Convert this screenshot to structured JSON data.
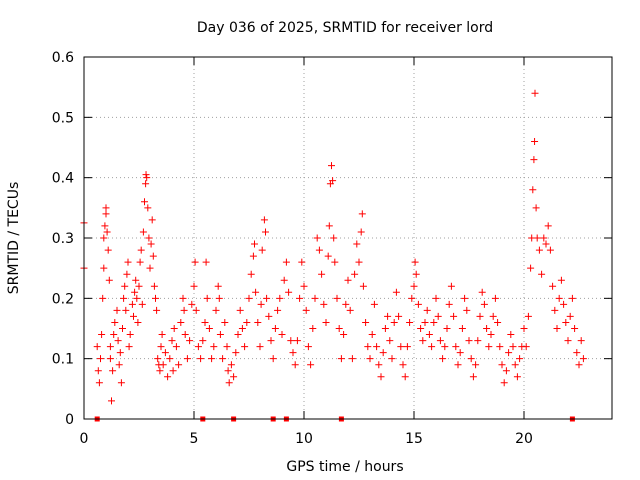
{
  "chart_data": {
    "type": "scatter",
    "title": "Day 036 of 2025, SRMTID for receiver lord",
    "xlabel": "GPS time / hours",
    "ylabel": "SRMTID / TECUs",
    "xlim": [
      0,
      24
    ],
    "ylim": [
      0,
      0.6
    ],
    "xticks": [
      0,
      5,
      10,
      15,
      20
    ],
    "yticks": [
      0,
      0.1,
      0.2,
      0.3,
      0.4,
      0.5,
      0.6
    ],
    "xtick_labels": [
      "0",
      "5",
      "10",
      "15",
      "20"
    ],
    "ytick_labels": [
      "0",
      "0.1",
      "0.2",
      "0.3",
      "0.4",
      "0.5",
      "0.6"
    ],
    "grid": true,
    "marker": "+",
    "color": "#ff0000",
    "series": [
      {
        "name": "SRMTID",
        "points": [
          [
            0.0,
            0.325
          ],
          [
            0.0,
            0.25
          ],
          [
            0.6,
            0.12
          ],
          [
            0.65,
            0.08
          ],
          [
            0.7,
            0.06
          ],
          [
            0.75,
            0.1
          ],
          [
            0.8,
            0.14
          ],
          [
            0.85,
            0.2
          ],
          [
            0.9,
            0.25
          ],
          [
            0.9,
            0.3
          ],
          [
            0.95,
            0.32
          ],
          [
            1.0,
            0.35
          ],
          [
            1.0,
            0.34
          ],
          [
            1.05,
            0.31
          ],
          [
            1.1,
            0.28
          ],
          [
            1.15,
            0.23
          ],
          [
            1.2,
            0.1
          ],
          [
            1.2,
            0.12
          ],
          [
            1.25,
            0.03
          ],
          [
            1.3,
            0.08
          ],
          [
            1.35,
            0.14
          ],
          [
            1.4,
            0.16
          ],
          [
            1.5,
            0.18
          ],
          [
            1.55,
            0.13
          ],
          [
            1.6,
            0.09
          ],
          [
            1.65,
            0.11
          ],
          [
            1.7,
            0.06
          ],
          [
            1.75,
            0.15
          ],
          [
            1.8,
            0.2
          ],
          [
            1.85,
            0.22
          ],
          [
            1.9,
            0.18
          ],
          [
            1.95,
            0.24
          ],
          [
            2.0,
            0.26
          ],
          [
            2.05,
            0.12
          ],
          [
            2.1,
            0.14
          ],
          [
            2.2,
            0.19
          ],
          [
            2.25,
            0.17
          ],
          [
            2.3,
            0.21
          ],
          [
            2.35,
            0.23
          ],
          [
            2.4,
            0.2
          ],
          [
            2.45,
            0.16
          ],
          [
            2.5,
            0.22
          ],
          [
            2.55,
            0.26
          ],
          [
            2.6,
            0.28
          ],
          [
            2.65,
            0.19
          ],
          [
            2.7,
            0.31
          ],
          [
            2.75,
            0.36
          ],
          [
            2.8,
            0.39
          ],
          [
            2.82,
            0.405
          ],
          [
            2.85,
            0.4
          ],
          [
            2.9,
            0.35
          ],
          [
            2.95,
            0.3
          ],
          [
            3.0,
            0.25
          ],
          [
            3.05,
            0.29
          ],
          [
            3.1,
            0.33
          ],
          [
            3.15,
            0.27
          ],
          [
            3.2,
            0.22
          ],
          [
            3.25,
            0.2
          ],
          [
            3.3,
            0.18
          ],
          [
            3.35,
            0.1
          ],
          [
            3.4,
            0.09
          ],
          [
            3.45,
            0.08
          ],
          [
            3.5,
            0.12
          ],
          [
            3.55,
            0.14
          ],
          [
            3.6,
            0.09
          ],
          [
            3.7,
            0.11
          ],
          [
            3.8,
            0.07
          ],
          [
            3.9,
            0.1
          ],
          [
            4.0,
            0.13
          ],
          [
            4.05,
            0.08
          ],
          [
            4.1,
            0.15
          ],
          [
            4.2,
            0.12
          ],
          [
            4.3,
            0.09
          ],
          [
            4.4,
            0.16
          ],
          [
            4.5,
            0.2
          ],
          [
            4.55,
            0.18
          ],
          [
            4.6,
            0.14
          ],
          [
            4.7,
            0.1
          ],
          [
            4.8,
            0.13
          ],
          [
            4.9,
            0.19
          ],
          [
            5.0,
            0.22
          ],
          [
            5.05,
            0.26
          ],
          [
            5.1,
            0.18
          ],
          [
            5.2,
            0.12
          ],
          [
            5.3,
            0.1
          ],
          [
            5.4,
            0.13
          ],
          [
            5.5,
            0.16
          ],
          [
            5.55,
            0.26
          ],
          [
            5.6,
            0.2
          ],
          [
            5.7,
            0.15
          ],
          [
            5.8,
            0.1
          ],
          [
            5.9,
            0.12
          ],
          [
            6.0,
            0.18
          ],
          [
            6.1,
            0.22
          ],
          [
            6.15,
            0.2
          ],
          [
            6.2,
            0.14
          ],
          [
            6.3,
            0.1
          ],
          [
            6.4,
            0.16
          ],
          [
            6.5,
            0.12
          ],
          [
            6.55,
            0.08
          ],
          [
            6.6,
            0.06
          ],
          [
            6.7,
            0.09
          ],
          [
            6.8,
            0.07
          ],
          [
            6.9,
            0.11
          ],
          [
            7.0,
            0.14
          ],
          [
            7.1,
            0.18
          ],
          [
            7.2,
            0.15
          ],
          [
            7.3,
            0.12
          ],
          [
            7.4,
            0.16
          ],
          [
            7.5,
            0.2
          ],
          [
            7.6,
            0.24
          ],
          [
            7.7,
            0.27
          ],
          [
            7.75,
            0.29
          ],
          [
            7.8,
            0.21
          ],
          [
            7.9,
            0.16
          ],
          [
            8.0,
            0.12
          ],
          [
            8.05,
            0.19
          ],
          [
            8.1,
            0.28
          ],
          [
            8.2,
            0.33
          ],
          [
            8.25,
            0.31
          ],
          [
            8.3,
            0.2
          ],
          [
            8.4,
            0.17
          ],
          [
            8.5,
            0.13
          ],
          [
            8.6,
            0.1
          ],
          [
            8.7,
            0.15
          ],
          [
            8.8,
            0.18
          ],
          [
            8.9,
            0.2
          ],
          [
            9.0,
            0.14
          ],
          [
            9.1,
            0.23
          ],
          [
            9.2,
            0.26
          ],
          [
            9.3,
            0.21
          ],
          [
            9.4,
            0.13
          ],
          [
            9.5,
            0.11
          ],
          [
            9.6,
            0.09
          ],
          [
            9.7,
            0.13
          ],
          [
            9.8,
            0.2
          ],
          [
            9.9,
            0.26
          ],
          [
            10.0,
            0.22
          ],
          [
            10.1,
            0.18
          ],
          [
            10.2,
            0.12
          ],
          [
            10.3,
            0.09
          ],
          [
            10.4,
            0.15
          ],
          [
            10.5,
            0.2
          ],
          [
            10.6,
            0.3
          ],
          [
            10.7,
            0.28
          ],
          [
            10.8,
            0.24
          ],
          [
            10.9,
            0.19
          ],
          [
            11.0,
            0.16
          ],
          [
            11.1,
            0.27
          ],
          [
            11.15,
            0.32
          ],
          [
            11.2,
            0.39
          ],
          [
            11.25,
            0.42
          ],
          [
            11.3,
            0.395
          ],
          [
            11.35,
            0.3
          ],
          [
            11.4,
            0.26
          ],
          [
            11.5,
            0.2
          ],
          [
            11.6,
            0.15
          ],
          [
            11.7,
            0.1
          ],
          [
            11.8,
            0.14
          ],
          [
            11.9,
            0.19
          ],
          [
            12.0,
            0.23
          ],
          [
            12.1,
            0.18
          ],
          [
            12.2,
            0.1
          ],
          [
            12.3,
            0.24
          ],
          [
            12.4,
            0.29
          ],
          [
            12.5,
            0.26
          ],
          [
            12.6,
            0.31
          ],
          [
            12.65,
            0.34
          ],
          [
            12.7,
            0.22
          ],
          [
            12.8,
            0.16
          ],
          [
            12.9,
            0.12
          ],
          [
            13.0,
            0.1
          ],
          [
            13.1,
            0.14
          ],
          [
            13.2,
            0.19
          ],
          [
            13.3,
            0.12
          ],
          [
            13.4,
            0.09
          ],
          [
            13.5,
            0.07
          ],
          [
            13.6,
            0.11
          ],
          [
            13.7,
            0.15
          ],
          [
            13.8,
            0.17
          ],
          [
            13.9,
            0.13
          ],
          [
            14.0,
            0.1
          ],
          [
            14.1,
            0.16
          ],
          [
            14.2,
            0.21
          ],
          [
            14.3,
            0.17
          ],
          [
            14.4,
            0.12
          ],
          [
            14.5,
            0.09
          ],
          [
            14.6,
            0.07
          ],
          [
            14.7,
            0.12
          ],
          [
            14.8,
            0.16
          ],
          [
            14.9,
            0.2
          ],
          [
            15.0,
            0.22
          ],
          [
            15.05,
            0.26
          ],
          [
            15.1,
            0.24
          ],
          [
            15.2,
            0.19
          ],
          [
            15.3,
            0.15
          ],
          [
            15.4,
            0.13
          ],
          [
            15.5,
            0.16
          ],
          [
            15.6,
            0.18
          ],
          [
            15.7,
            0.14
          ],
          [
            15.8,
            0.12
          ],
          [
            15.9,
            0.16
          ],
          [
            16.0,
            0.2
          ],
          [
            16.1,
            0.17
          ],
          [
            16.2,
            0.13
          ],
          [
            16.3,
            0.1
          ],
          [
            16.4,
            0.12
          ],
          [
            16.5,
            0.15
          ],
          [
            16.6,
            0.19
          ],
          [
            16.7,
            0.22
          ],
          [
            16.8,
            0.17
          ],
          [
            16.9,
            0.12
          ],
          [
            17.0,
            0.09
          ],
          [
            17.1,
            0.11
          ],
          [
            17.2,
            0.15
          ],
          [
            17.3,
            0.2
          ],
          [
            17.4,
            0.18
          ],
          [
            17.5,
            0.13
          ],
          [
            17.6,
            0.1
          ],
          [
            17.7,
            0.07
          ],
          [
            17.8,
            0.09
          ],
          [
            17.9,
            0.13
          ],
          [
            18.0,
            0.17
          ],
          [
            18.1,
            0.21
          ],
          [
            18.2,
            0.19
          ],
          [
            18.3,
            0.15
          ],
          [
            18.4,
            0.12
          ],
          [
            18.5,
            0.14
          ],
          [
            18.6,
            0.17
          ],
          [
            18.7,
            0.2
          ],
          [
            18.8,
            0.16
          ],
          [
            18.9,
            0.12
          ],
          [
            19.0,
            0.09
          ],
          [
            19.1,
            0.06
          ],
          [
            19.2,
            0.08
          ],
          [
            19.3,
            0.11
          ],
          [
            19.4,
            0.14
          ],
          [
            19.5,
            0.12
          ],
          [
            19.6,
            0.09
          ],
          [
            19.7,
            0.07
          ],
          [
            19.8,
            0.1
          ],
          [
            19.9,
            0.12
          ],
          [
            20.0,
            0.15
          ],
          [
            20.1,
            0.12
          ],
          [
            20.2,
            0.17
          ],
          [
            20.3,
            0.25
          ],
          [
            20.35,
            0.3
          ],
          [
            20.4,
            0.38
          ],
          [
            20.45,
            0.43
          ],
          [
            20.48,
            0.46
          ],
          [
            20.5,
            0.54
          ],
          [
            20.55,
            0.35
          ],
          [
            20.6,
            0.3
          ],
          [
            20.7,
            0.28
          ],
          [
            20.8,
            0.24
          ],
          [
            20.9,
            0.3
          ],
          [
            21.0,
            0.29
          ],
          [
            21.1,
            0.32
          ],
          [
            21.2,
            0.28
          ],
          [
            21.3,
            0.22
          ],
          [
            21.4,
            0.18
          ],
          [
            21.5,
            0.15
          ],
          [
            21.6,
            0.2
          ],
          [
            21.7,
            0.23
          ],
          [
            21.8,
            0.19
          ],
          [
            21.9,
            0.16
          ],
          [
            22.0,
            0.13
          ],
          [
            22.1,
            0.17
          ],
          [
            22.2,
            0.2
          ],
          [
            22.3,
            0.15
          ],
          [
            22.4,
            0.11
          ],
          [
            22.5,
            0.09
          ],
          [
            22.6,
            0.13
          ],
          [
            22.7,
            0.1
          ]
        ]
      }
    ],
    "gap_markers_x": [
      0.6,
      5.4,
      6.8,
      8.6,
      9.2,
      11.7,
      22.2
    ]
  }
}
